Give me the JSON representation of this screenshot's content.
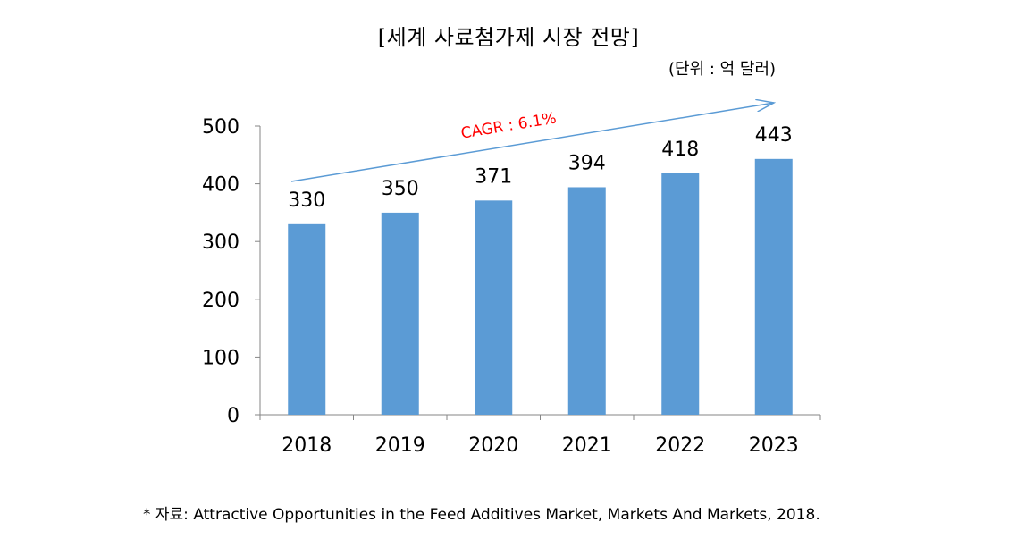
{
  "chart_data": {
    "type": "bar",
    "title": "[세계 사료첨가제 시장 전망]",
    "unit_label": "(단위 : 억 달러)",
    "categories": [
      "2018",
      "2019",
      "2020",
      "2021",
      "2022",
      "2023"
    ],
    "values": [
      330,
      350,
      371,
      394,
      418,
      443
    ],
    "ylim": [
      0,
      500
    ],
    "yticks": [
      0,
      100,
      200,
      300,
      400,
      500
    ],
    "xlabel": "",
    "ylabel": "",
    "grid": false,
    "legend": "none",
    "annotation": "CAGR : 6.1%",
    "colors": {
      "bar": "#5b9bd5",
      "arrow": "#5b9bd5",
      "annotation": "#ff0000"
    }
  },
  "source_note": "* 자료: Attractive Opportunities in the Feed Additives Market, Markets And Markets, 2018."
}
